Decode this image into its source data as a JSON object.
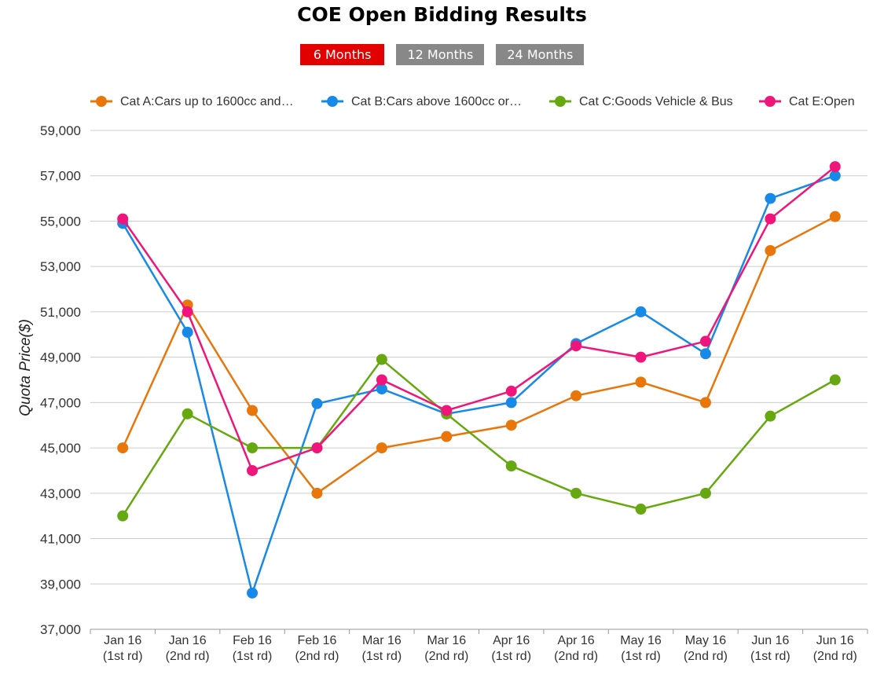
{
  "title": "COE Open Bidding Results",
  "range_buttons": [
    {
      "label": "6 Months",
      "active": true
    },
    {
      "label": "12 Months",
      "active": false
    },
    {
      "label": "24 Months",
      "active": false
    }
  ],
  "colors": {
    "active_button": "#e30000",
    "inactive_button": "#888888",
    "grid": "#cccccc"
  },
  "chart_data": {
    "type": "line",
    "ylabel": "Quota Price($)",
    "xlabel": "",
    "ylim": [
      37000,
      59000
    ],
    "yticks": [
      "37,000",
      "39,000",
      "41,000",
      "43,000",
      "45,000",
      "47,000",
      "49,000",
      "51,000",
      "53,000",
      "55,000",
      "57,000",
      "59,000"
    ],
    "grid": true,
    "legend_position": "top",
    "categories": [
      [
        "Jan 16",
        "(1st rd)"
      ],
      [
        "Jan 16",
        "(2nd rd)"
      ],
      [
        "Feb 16",
        "(1st rd)"
      ],
      [
        "Feb 16",
        "(2nd rd)"
      ],
      [
        "Mar 16",
        "(1st rd)"
      ],
      [
        "Mar 16",
        "(2nd rd)"
      ],
      [
        "Apr 16",
        "(1st rd)"
      ],
      [
        "Apr 16",
        "(2nd rd)"
      ],
      [
        "May 16",
        "(1st rd)"
      ],
      [
        "May 16",
        "(2nd rd)"
      ],
      [
        "Jun 16",
        "(1st rd)"
      ],
      [
        "Jun 16",
        "(2nd rd)"
      ]
    ],
    "series": [
      {
        "name": "Cat A:Cars up to 1600cc and…",
        "color": "#e8760a",
        "values": [
          45000,
          51300,
          46650,
          43000,
          45000,
          45500,
          46000,
          47300,
          47900,
          47000,
          53700,
          55200
        ]
      },
      {
        "name": "Cat B:Cars above 1600cc or…",
        "color": "#1789e6",
        "values": [
          54900,
          50100,
          38600,
          46950,
          47600,
          46500,
          47000,
          49600,
          51000,
          49150,
          56000,
          57000
        ]
      },
      {
        "name": "Cat C:Goods Vehicle & Bus",
        "color": "#66a80f",
        "values": [
          42000,
          46500,
          45000,
          45000,
          48900,
          46500,
          44200,
          43000,
          42300,
          43000,
          46400,
          48000
        ]
      },
      {
        "name": "Cat E:Open",
        "color": "#f0157a",
        "values": [
          55100,
          51000,
          44000,
          45000,
          48000,
          46650,
          47500,
          49500,
          49000,
          49700,
          55100,
          57400
        ]
      }
    ]
  }
}
